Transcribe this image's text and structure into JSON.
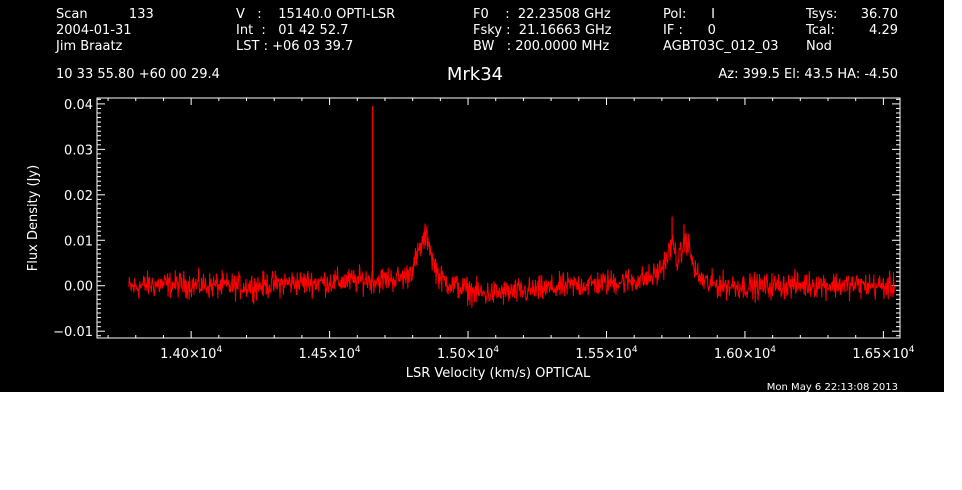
{
  "header": {
    "col1": [
      "Scan          133",
      "2004-01-31",
      "Jim Braatz"
    ],
    "col2": [
      "V   :    15140.0 OPTI-LSR",
      "Int  :   01 42 52.7",
      "LST : +06 03 39.7"
    ],
    "col3": [
      "F0    :  22.23508 GHz",
      "Fsky :  21.16663 GHz",
      "BW   : 200.0000 MHz"
    ],
    "col4": [
      "Pol:      I",
      "IF :      0",
      "AGBT03C_012_03"
    ],
    "col5_labels": [
      "Tsys:",
      "Tcal:",
      "Nod"
    ],
    "col5_values": [
      "36.70",
      "4.29",
      ""
    ],
    "coords": "10 33 55.80   +60 00 29.4",
    "telescope": "Az: 399.5   El:  43.5   HA: -4.50"
  },
  "timestamp": "Mon May  6 22:13:08 2013",
  "colors": {
    "background": "#000000",
    "axes": "#ffffff",
    "trace": "#ff0000",
    "text": "#ffffff"
  },
  "chart_data": {
    "type": "line",
    "title": "Mrk34",
    "xlabel": "LSR Velocity (km/s) OPTICAL",
    "ylabel": "Flux Density (Jy)",
    "xlim": [
      13660,
      16560
    ],
    "ylim": [
      -0.0115,
      0.0413
    ],
    "x_ticks": [
      14000,
      14500,
      15000,
      15500,
      16000,
      16500
    ],
    "x_tick_labels": [
      {
        "mant": "1.40×10",
        "exp": "4"
      },
      {
        "mant": "1.45×10",
        "exp": "4"
      },
      {
        "mant": "1.50×10",
        "exp": "4"
      },
      {
        "mant": "1.55×10",
        "exp": "4"
      },
      {
        "mant": "1.60×10",
        "exp": "4"
      },
      {
        "mant": "1.65×10",
        "exp": "4"
      }
    ],
    "y_ticks": [
      -0.01,
      0.0,
      0.01,
      0.02,
      0.03,
      0.04
    ],
    "y_tick_labels": [
      "−0.01",
      "0.00",
      "0.01",
      "0.02",
      "0.03",
      "0.04"
    ],
    "grid": false,
    "series": [
      {
        "noise_amplitude": 0.0022,
        "x": [
          13775,
          13850,
          13950,
          14050,
          14150,
          14250,
          14350,
          14450,
          14530,
          14580,
          14630,
          14660,
          14700,
          14750,
          14780,
          14800,
          14820,
          14840,
          14850,
          14860,
          14870,
          14900,
          14950,
          15000,
          15050,
          15100,
          15200,
          15300,
          15400,
          15500,
          15550,
          15600,
          15650,
          15680,
          15700,
          15720,
          15730,
          15740,
          15750,
          15760,
          15770,
          15780,
          15790,
          15800,
          15810,
          15830,
          15870,
          15950,
          16050,
          16150,
          16250,
          16350,
          16450,
          16540
        ],
        "y": [
          -0.0005,
          0.0002,
          0.0003,
          0.0001,
          -0.0001,
          0.0,
          0.0006,
          0.0008,
          0.0009,
          0.0011,
          0.0013,
          0.0012,
          0.0014,
          0.0016,
          0.0022,
          0.004,
          0.007,
          0.01,
          0.011,
          0.0095,
          0.006,
          0.0015,
          0.0,
          -0.001,
          -0.0018,
          -0.0016,
          -0.0013,
          -0.0006,
          0.0002,
          0.0006,
          0.001,
          0.0012,
          0.0016,
          0.0025,
          0.004,
          0.0065,
          0.008,
          0.0095,
          0.007,
          0.005,
          0.007,
          0.0095,
          0.01,
          0.008,
          0.005,
          0.002,
          0.0003,
          0.0,
          -0.0002,
          0.0001,
          0.0003,
          0.0002,
          0.0,
          -0.0003
        ]
      }
    ],
    "spikes": [
      {
        "x": 14655,
        "y": 0.0395
      },
      {
        "x": 15737,
        "y": 0.0152
      },
      {
        "x": 15780,
        "y": 0.0135
      }
    ]
  }
}
